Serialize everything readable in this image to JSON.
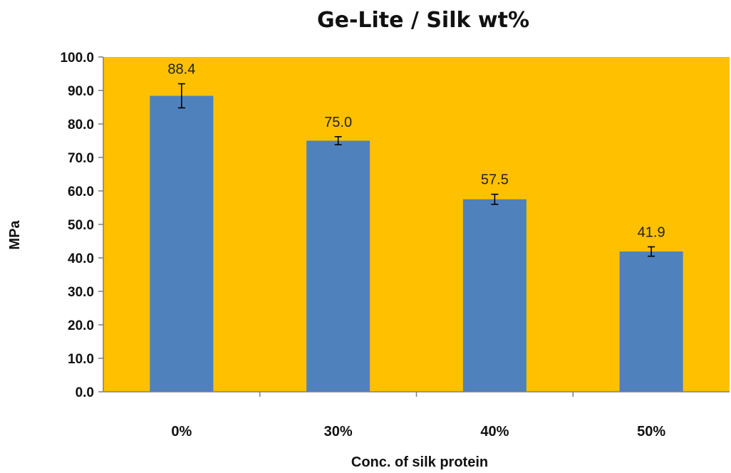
{
  "chart_data": {
    "type": "bar",
    "title": "Ge-Lite / Silk wt%",
    "xlabel": "Conc. of silk protein",
    "ylabel": "MPa",
    "categories": [
      "0%",
      "30%",
      "40%",
      "50%"
    ],
    "values": [
      88.4,
      75.0,
      57.5,
      41.9
    ],
    "value_labels": [
      "88.4",
      "75.0",
      "57.5",
      "41.9"
    ],
    "error": [
      3.6,
      1.2,
      1.5,
      1.4
    ],
    "ylim": [
      0,
      100
    ],
    "yticks": [
      0,
      10,
      20,
      30,
      40,
      50,
      60,
      70,
      80,
      90,
      100
    ],
    "ytick_labels": [
      "0.0",
      "10.0",
      "20.0",
      "30.0",
      "40.0",
      "50.0",
      "60.0",
      "70.0",
      "80.0",
      "90.0",
      "100.0"
    ],
    "grid": false,
    "legend": "none",
    "colors": {
      "plot_background": "#FFC000",
      "bar": "#4F81BD",
      "axis": "#7f7f7f",
      "error_bar": "#000000"
    }
  }
}
